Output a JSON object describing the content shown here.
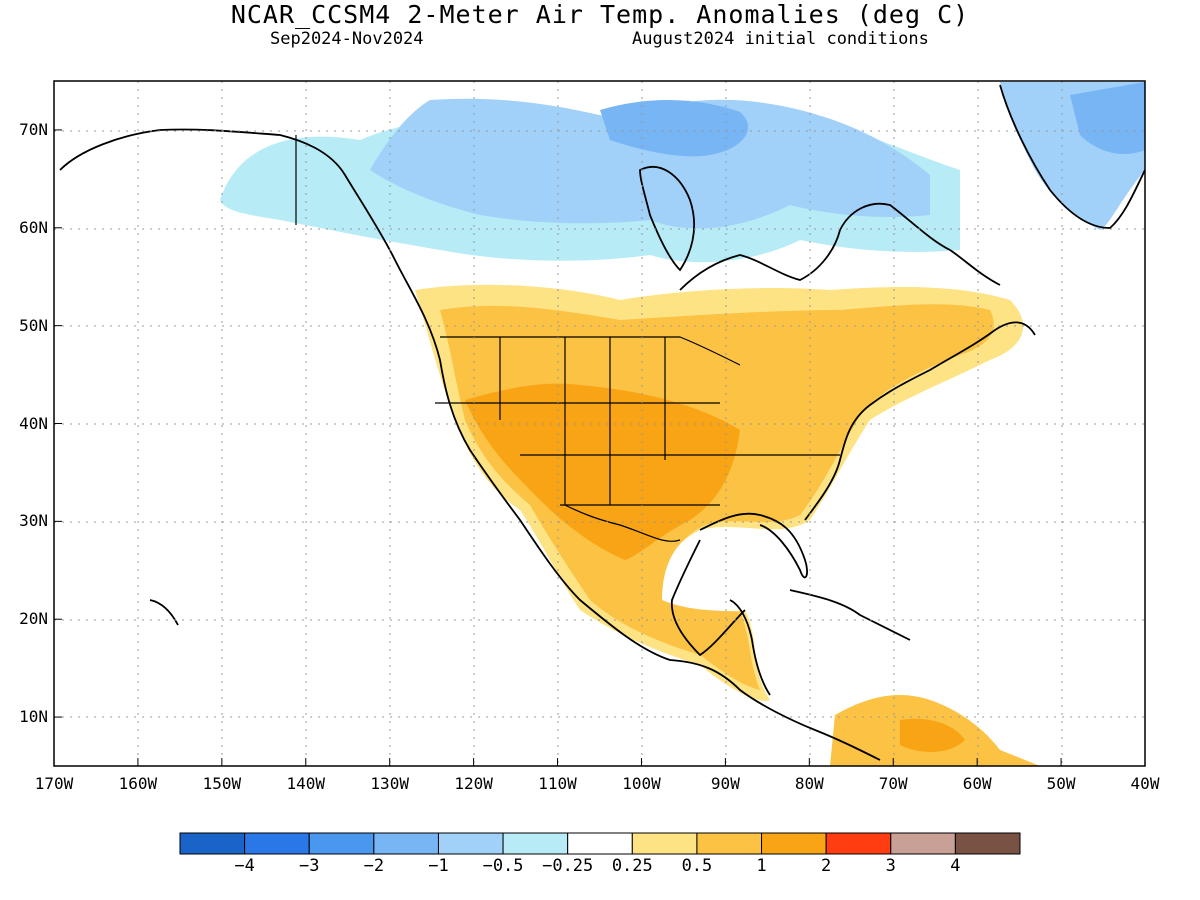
{
  "title": "NCAR_CCSM4 2-Meter Air Temp. Anomalies (deg C)",
  "subtitle_left": "Sep2024-Nov2024",
  "subtitle_right": "August2024 initial conditions",
  "lat_labels": [
    "70N",
    "60N",
    "50N",
    "40N",
    "30N",
    "20N",
    "10N"
  ],
  "lon_labels": [
    "170W",
    "160W",
    "150W",
    "140W",
    "130W",
    "120W",
    "110W",
    "100W",
    "90W",
    "80W",
    "70W",
    "60W",
    "50W",
    "40W"
  ],
  "colorbar": {
    "colors": [
      "#1a63c9",
      "#2a78e8",
      "#4a97f0",
      "#78b5f5",
      "#a1d0f8",
      "#b7ecf7",
      "#ffffff",
      "#fde384",
      "#fbc243",
      "#f8a415",
      "#ff3d10",
      "#c9a096",
      "#7a5244"
    ],
    "labels": [
      "−4",
      "−3",
      "−2",
      "−1",
      "−0.5",
      "−0.25",
      "0.25",
      "0.5",
      "1",
      "2",
      "3",
      "4"
    ]
  },
  "map_extent": {
    "lon": [
      -170,
      -40
    ],
    "lat": [
      5,
      75
    ]
  }
}
